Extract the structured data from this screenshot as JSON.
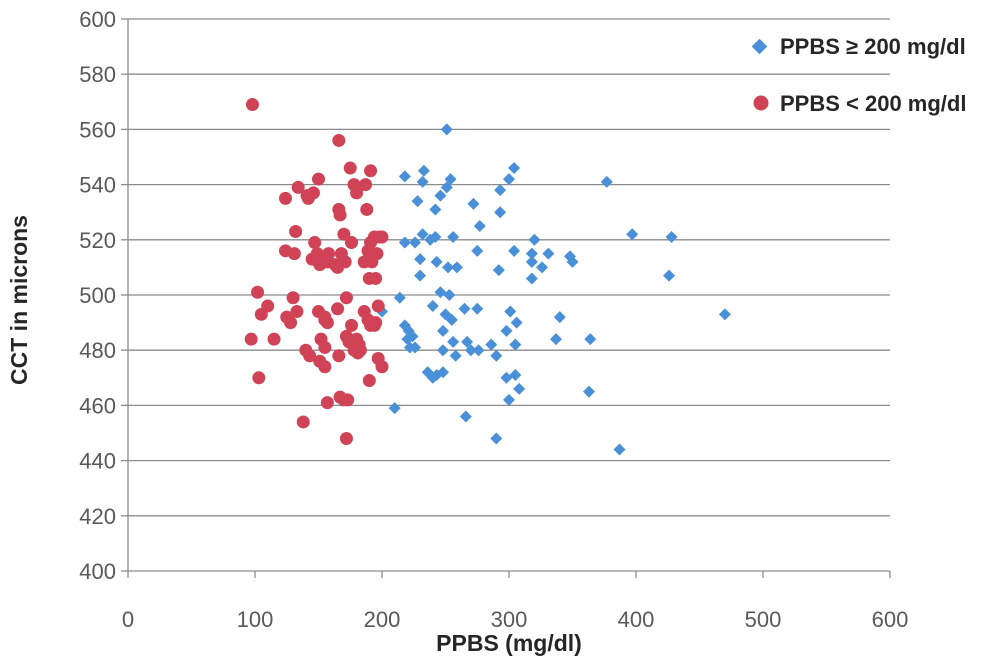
{
  "chart_data": {
    "type": "scatter",
    "title": "",
    "xlabel": "PPBS (mg/dl)",
    "ylabel": "CCT in microns",
    "xlim": [
      0,
      600
    ],
    "ylim": [
      400,
      600
    ],
    "xticks": [
      "0",
      "100",
      "200",
      "300",
      "400",
      "500",
      "600"
    ],
    "yticks": [
      "400",
      "420",
      "440",
      "460",
      "480",
      "500",
      "520",
      "540",
      "560",
      "580",
      "600"
    ],
    "grid": "horizontal",
    "legend_position": "top-right",
    "series": [
      {
        "name": "PPBS ≥ 200 mg/dl",
        "marker": "diamond",
        "color": "#4a90d9",
        "points": [
          [
            251,
            560
          ],
          [
            218,
            543
          ],
          [
            233,
            545
          ],
          [
            304,
            546
          ],
          [
            254,
            542
          ],
          [
            232,
            541
          ],
          [
            251,
            539
          ],
          [
            377,
            541
          ],
          [
            246,
            536
          ],
          [
            228,
            534
          ],
          [
            272,
            533
          ],
          [
            293,
            538
          ],
          [
            300,
            542
          ],
          [
            242,
            531
          ],
          [
            293,
            530
          ],
          [
            277,
            525
          ],
          [
            232,
            522
          ],
          [
            238,
            520
          ],
          [
            242,
            521
          ],
          [
            256,
            521
          ],
          [
            218,
            519
          ],
          [
            226,
            519
          ],
          [
            320,
            520
          ],
          [
            275,
            516
          ],
          [
            304,
            516
          ],
          [
            318,
            515
          ],
          [
            331,
            515
          ],
          [
            348,
            514
          ],
          [
            350,
            512
          ],
          [
            397,
            522
          ],
          [
            428,
            521
          ],
          [
            230,
            513
          ],
          [
            243,
            512
          ],
          [
            259,
            510
          ],
          [
            252,
            510
          ],
          [
            292,
            509
          ],
          [
            318,
            512
          ],
          [
            326,
            510
          ],
          [
            230,
            507
          ],
          [
            318,
            506
          ],
          [
            426,
            507
          ],
          [
            246,
            501
          ],
          [
            253,
            500
          ],
          [
            214,
            499
          ],
          [
            240,
            496
          ],
          [
            265,
            495
          ],
          [
            275,
            495
          ],
          [
            301,
            494
          ],
          [
            200,
            494
          ],
          [
            250,
            493
          ],
          [
            255,
            491
          ],
          [
            306,
            490
          ],
          [
            298,
            487
          ],
          [
            340,
            492
          ],
          [
            470,
            493
          ],
          [
            218,
            489
          ],
          [
            221,
            487
          ],
          [
            248,
            487
          ],
          [
            224,
            485
          ],
          [
            220,
            484
          ],
          [
            267,
            483
          ],
          [
            286,
            482
          ],
          [
            305,
            482
          ],
          [
            337,
            484
          ],
          [
            364,
            484
          ],
          [
            222,
            481
          ],
          [
            226,
            481
          ],
          [
            256,
            483
          ],
          [
            270,
            480
          ],
          [
            248,
            480
          ],
          [
            276,
            480
          ],
          [
            258,
            478
          ],
          [
            290,
            478
          ],
          [
            236,
            472
          ],
          [
            243,
            471
          ],
          [
            240,
            470
          ],
          [
            298,
            470
          ],
          [
            305,
            471
          ],
          [
            248,
            472
          ],
          [
            308,
            466
          ],
          [
            363,
            465
          ],
          [
            210,
            459
          ],
          [
            300,
            462
          ],
          [
            266,
            456
          ],
          [
            290,
            448
          ],
          [
            387,
            444
          ]
        ]
      },
      {
        "name": "PPBS < 200 mg/dl",
        "marker": "circle",
        "color": "#d04357",
        "points": [
          [
            98,
            569
          ],
          [
            166,
            556
          ],
          [
            150,
            542
          ],
          [
            175,
            546
          ],
          [
            191,
            545
          ],
          [
            134,
            539
          ],
          [
            178,
            540
          ],
          [
            187,
            540
          ],
          [
            146,
            537
          ],
          [
            180,
            537
          ],
          [
            141,
            536
          ],
          [
            124,
            535
          ],
          [
            142,
            535
          ],
          [
            166,
            531
          ],
          [
            188,
            531
          ],
          [
            167,
            529
          ],
          [
            132,
            523
          ],
          [
            170,
            522
          ],
          [
            194,
            521
          ],
          [
            198,
            521
          ],
          [
            200,
            521
          ],
          [
            147,
            519
          ],
          [
            176,
            519
          ],
          [
            191,
            519
          ],
          [
            189,
            516
          ],
          [
            124,
            516
          ],
          [
            131,
            515
          ],
          [
            149,
            515
          ],
          [
            158,
            515
          ],
          [
            168,
            515
          ],
          [
            196,
            515
          ],
          [
            145,
            513
          ],
          [
            153,
            512
          ],
          [
            157,
            512
          ],
          [
            171,
            512
          ],
          [
            186,
            512
          ],
          [
            192,
            512
          ],
          [
            151,
            511
          ],
          [
            163,
            511
          ],
          [
            165,
            510
          ],
          [
            190,
            506
          ],
          [
            195,
            506
          ],
          [
            102,
            501
          ],
          [
            130,
            499
          ],
          [
            172,
            499
          ],
          [
            110,
            496
          ],
          [
            197,
            496
          ],
          [
            165,
            495
          ],
          [
            133,
            494
          ],
          [
            150,
            494
          ],
          [
            186,
            494
          ],
          [
            105,
            493
          ],
          [
            155,
            492
          ],
          [
            125,
            492
          ],
          [
            155,
            491
          ],
          [
            189,
            491
          ],
          [
            157,
            490
          ],
          [
            128,
            490
          ],
          [
            195,
            490
          ],
          [
            176,
            489
          ],
          [
            191,
            489
          ],
          [
            194,
            489
          ],
          [
            97,
            484
          ],
          [
            115,
            484
          ],
          [
            152,
            484
          ],
          [
            172,
            485
          ],
          [
            180,
            484
          ],
          [
            174,
            483
          ],
          [
            182,
            482
          ],
          [
            155,
            481
          ],
          [
            140,
            480
          ],
          [
            178,
            480
          ],
          [
            183,
            480
          ],
          [
            181,
            479
          ],
          [
            143,
            478
          ],
          [
            166,
            478
          ],
          [
            151,
            476
          ],
          [
            197,
            477
          ],
          [
            155,
            474
          ],
          [
            200,
            474
          ],
          [
            190,
            469
          ],
          [
            103,
            470
          ],
          [
            170,
            462
          ],
          [
            157,
            461
          ],
          [
            167,
            463
          ],
          [
            173,
            462
          ],
          [
            138,
            454
          ],
          [
            172,
            448
          ]
        ]
      }
    ]
  }
}
